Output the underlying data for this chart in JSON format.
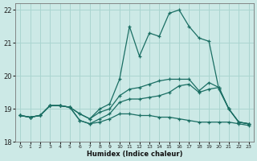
{
  "xlabel": "Humidex (Indice chaleur)",
  "bg_color": "#cce9e6",
  "grid_color": "#aad5d0",
  "line_color": "#1a6e63",
  "x_values": [
    0,
    1,
    2,
    3,
    4,
    5,
    6,
    7,
    8,
    9,
    10,
    11,
    12,
    13,
    14,
    15,
    16,
    17,
    18,
    19,
    20,
    21,
    22,
    23
  ],
  "series1": [
    18.8,
    18.75,
    18.8,
    19.1,
    19.1,
    19.05,
    18.85,
    18.7,
    19.0,
    19.15,
    19.9,
    21.5,
    20.6,
    21.3,
    21.2,
    21.9,
    22.0,
    21.5,
    21.15,
    21.05,
    19.6,
    19.0,
    18.6,
    18.55
  ],
  "series2": [
    18.8,
    18.75,
    18.8,
    19.1,
    19.1,
    19.05,
    18.85,
    18.7,
    18.9,
    19.0,
    19.4,
    19.6,
    19.65,
    19.75,
    19.85,
    19.9,
    19.9,
    19.9,
    19.55,
    19.8,
    19.65,
    19.0,
    18.6,
    18.55
  ],
  "series3": [
    18.8,
    18.75,
    18.8,
    19.1,
    19.1,
    19.05,
    18.65,
    18.55,
    18.7,
    18.85,
    19.2,
    19.3,
    19.3,
    19.35,
    19.4,
    19.5,
    19.7,
    19.75,
    19.5,
    19.6,
    19.65,
    19.0,
    18.6,
    18.55
  ],
  "series4": [
    18.8,
    18.75,
    18.8,
    19.1,
    19.1,
    19.05,
    18.65,
    18.55,
    18.6,
    18.7,
    18.85,
    18.85,
    18.8,
    18.8,
    18.75,
    18.75,
    18.7,
    18.65,
    18.6,
    18.6,
    18.6,
    18.6,
    18.55,
    18.5
  ],
  "ylim": [
    18.0,
    22.2
  ],
  "xlim": [
    -0.5,
    23.5
  ],
  "yticks": [
    18,
    19,
    20,
    21,
    22
  ],
  "xticks": [
    0,
    1,
    2,
    3,
    4,
    5,
    6,
    7,
    8,
    9,
    10,
    11,
    12,
    13,
    14,
    15,
    16,
    17,
    18,
    19,
    20,
    21,
    22,
    23
  ]
}
